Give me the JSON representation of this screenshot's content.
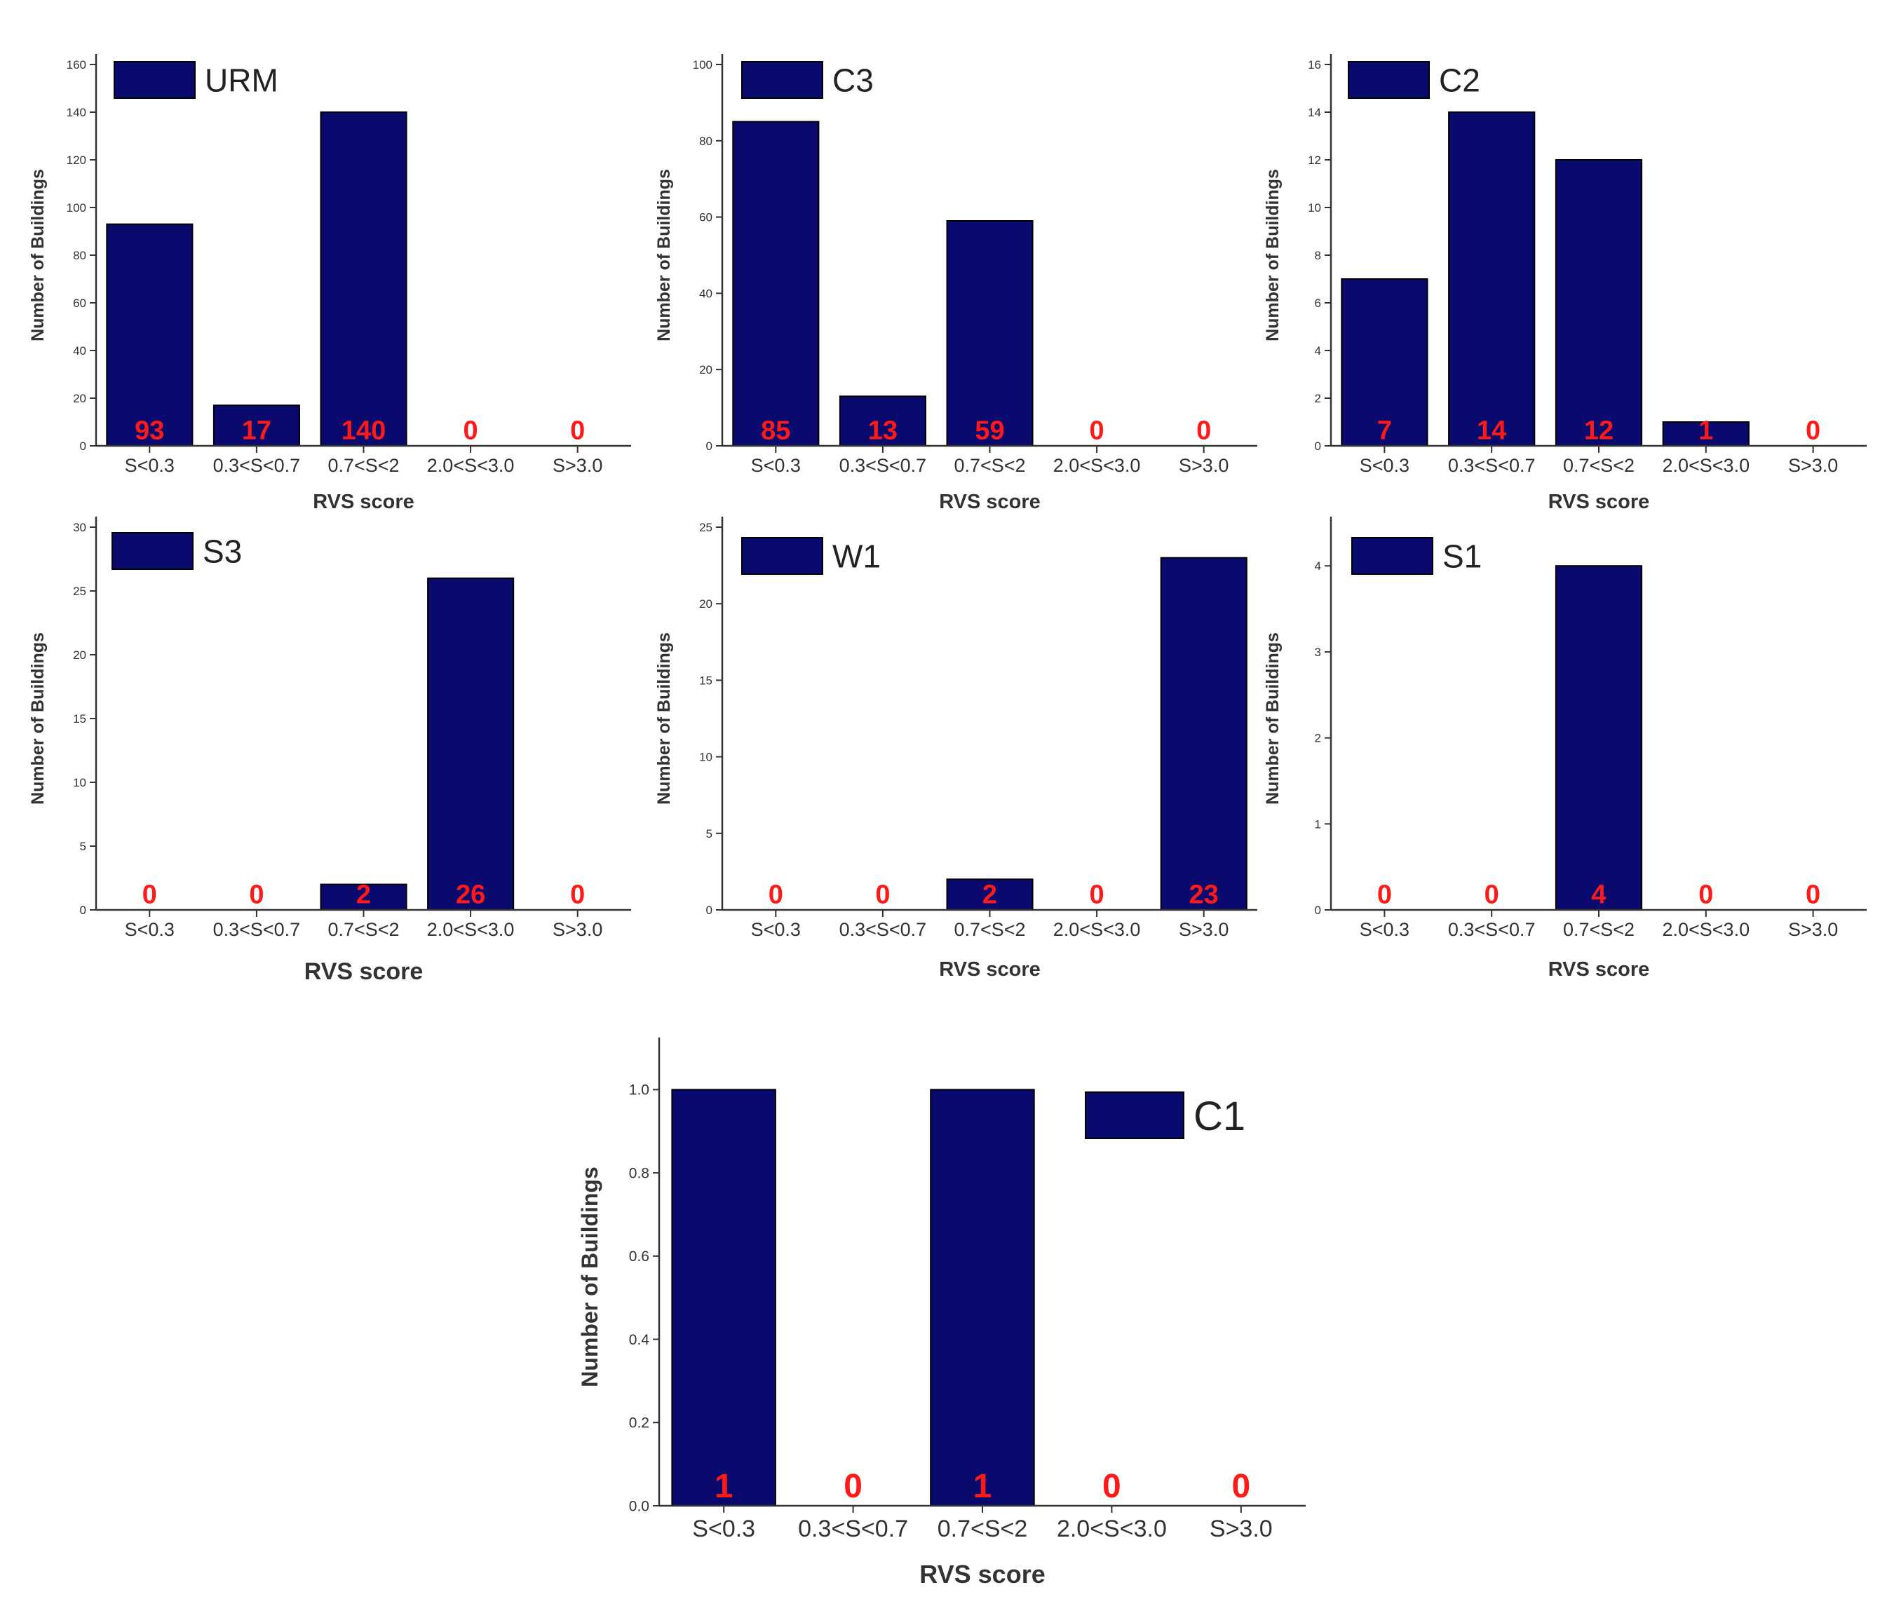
{
  "figure": {
    "bar_color": "#0a0a6e",
    "label_color": "#ff1a1a"
  },
  "chart_data": [
    {
      "type": "bar",
      "legend": "URM",
      "categories": [
        "S<0.3",
        "0.3<S<0.7",
        "0.7<S<2",
        "2.0<S<3.0",
        "S>3.0"
      ],
      "values": [
        93,
        17,
        140,
        0,
        0
      ],
      "value_labels": [
        "93",
        "17",
        "140",
        "0",
        "0"
      ],
      "xlabel": "RVS score",
      "ylabel": "Number of Buildings",
      "ylim": [
        0,
        160
      ],
      "yticks": [
        0,
        20,
        40,
        60,
        80,
        100,
        120,
        140,
        160
      ],
      "ytick_labels": [
        "0",
        "20",
        "40",
        "60",
        "80",
        "100",
        "120",
        "140",
        "160"
      ]
    },
    {
      "type": "bar",
      "legend": "C3",
      "categories": [
        "S<0.3",
        "0.3<S<0.7",
        "0.7<S<2",
        "2.0<S<3.0",
        "S>3.0"
      ],
      "values": [
        85,
        13,
        59,
        0,
        0
      ],
      "value_labels": [
        "85",
        "13",
        "59",
        "0",
        "0"
      ],
      "xlabel": "RVS score",
      "ylabel": "Number of Buildings",
      "ylim": [
        0,
        100
      ],
      "yticks": [
        0,
        20,
        40,
        60,
        80,
        100
      ],
      "ytick_labels": [
        "0",
        "20",
        "40",
        "60",
        "80",
        "100"
      ]
    },
    {
      "type": "bar",
      "legend": "C2",
      "categories": [
        "S<0.3",
        "0.3<S<0.7",
        "0.7<S<2",
        "2.0<S<3.0",
        "S>3.0"
      ],
      "values": [
        7,
        14,
        12,
        1,
        0
      ],
      "value_labels": [
        "7",
        "14",
        "12",
        "1",
        "0"
      ],
      "xlabel": "RVS score",
      "ylabel": "Number of Buildings",
      "ylim": [
        0,
        16
      ],
      "yticks": [
        0,
        2,
        4,
        6,
        8,
        10,
        12,
        14,
        16
      ],
      "ytick_labels": [
        "0",
        "2",
        "4",
        "6",
        "8",
        "10",
        "12",
        "14",
        "16"
      ]
    },
    {
      "type": "bar",
      "legend": "S3",
      "categories": [
        "S<0.3",
        "0.3<S<0.7",
        "0.7<S<2",
        "2.0<S<3.0",
        "S>3.0"
      ],
      "values": [
        0,
        0,
        2,
        26,
        0
      ],
      "value_labels": [
        "0",
        "0",
        "2",
        "26",
        "0"
      ],
      "xlabel": "RVS score",
      "ylabel": "Number of Buildings",
      "ylim": [
        0,
        30
      ],
      "yticks": [
        0,
        5,
        10,
        15,
        20,
        25,
        30
      ],
      "ytick_labels": [
        "0",
        "5",
        "10",
        "15",
        "20",
        "25",
        "30"
      ]
    },
    {
      "type": "bar",
      "legend": "W1",
      "categories": [
        "S<0.3",
        "0.3<S<0.7",
        "0.7<S<2",
        "2.0<S<3.0",
        "S>3.0"
      ],
      "values": [
        0,
        0,
        2,
        0,
        23
      ],
      "value_labels": [
        "0",
        "0",
        "2",
        "0",
        "23"
      ],
      "xlabel": "RVS score",
      "ylabel": "Number of Buildings",
      "ylim": [
        0,
        25
      ],
      "yticks": [
        0,
        5,
        10,
        15,
        20,
        25
      ],
      "ytick_labels": [
        "0",
        "5",
        "10",
        "15",
        "20",
        "25"
      ]
    },
    {
      "type": "bar",
      "legend": "S1",
      "categories": [
        "S<0.3",
        "0.3<S<0.7",
        "0.7<S<2",
        "2.0<S<3.0",
        "S>3.0"
      ],
      "values": [
        0,
        0,
        4,
        0,
        0
      ],
      "value_labels": [
        "0",
        "0",
        "4",
        "0",
        "0"
      ],
      "xlabel": "RVS score",
      "ylabel": "Number of Buildings",
      "ylim": [
        0,
        4.45
      ],
      "yticks": [
        0,
        1,
        2,
        3,
        4
      ],
      "ytick_labels": [
        "0",
        "1",
        "2",
        "3",
        "4"
      ]
    },
    {
      "type": "bar",
      "legend": "C1",
      "categories": [
        "S<0.3",
        "0.3<S<0.7",
        "0.7<S<2",
        "2.0<S<3.0",
        "S>3.0"
      ],
      "values": [
        1,
        0,
        1,
        0,
        0
      ],
      "value_labels": [
        "1",
        "0",
        "1",
        "0",
        "0"
      ],
      "xlabel": "RVS score",
      "ylabel": "Number of Buildings",
      "ylim": [
        0,
        1.1
      ],
      "yticks": [
        0,
        0.2,
        0.4,
        0.6,
        0.8,
        1.0
      ],
      "ytick_labels": [
        "0.0",
        "0.2",
        "0.4",
        "0.6",
        "0.8",
        "1.0"
      ]
    }
  ]
}
